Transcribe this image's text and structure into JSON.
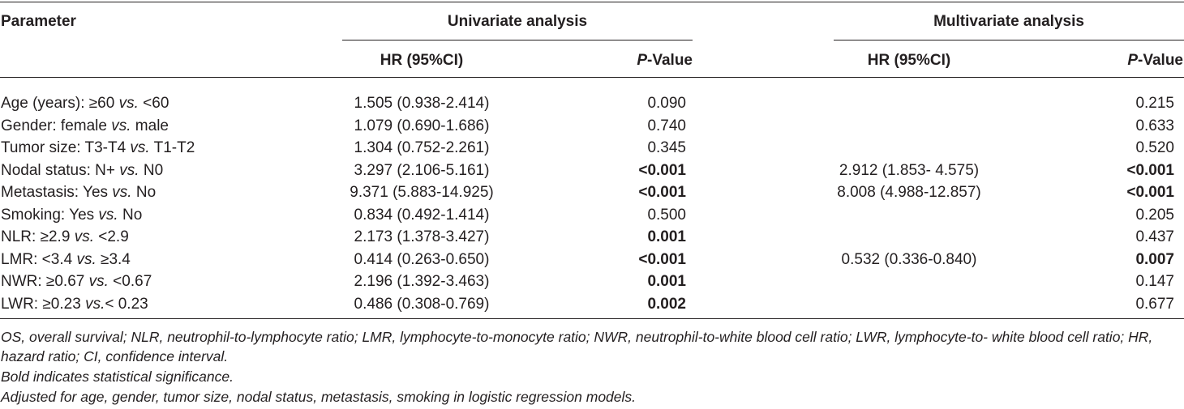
{
  "table": {
    "headers": {
      "parameter": "Parameter",
      "univariate": "Univariate analysis",
      "multivariate": "Multivariate analysis",
      "hr": "HR (95%CI)",
      "p_italic": "P",
      "p_suffix": "-Value"
    },
    "rows": [
      {
        "p1": "Age (years): ≥60 ",
        "vs": "vs.",
        "p2": " <60",
        "uni_hr": "1.505 (0.938-2.414)",
        "uni_p": "0.090",
        "uni_sig": false,
        "multi_hr": "",
        "multi_p": "0.215",
        "multi_sig": false
      },
      {
        "p1": "Gender: female ",
        "vs": "vs.",
        "p2": " male",
        "uni_hr": "1.079 (0.690-1.686)",
        "uni_p": "0.740",
        "uni_sig": false,
        "multi_hr": "",
        "multi_p": "0.633",
        "multi_sig": false
      },
      {
        "p1": "Tumor size: T3-T4 ",
        "vs": "vs.",
        "p2": " T1-T2",
        "uni_hr": "1.304 (0.752-2.261)",
        "uni_p": "0.345",
        "uni_sig": false,
        "multi_hr": "",
        "multi_p": "0.520",
        "multi_sig": false
      },
      {
        "p1": "Nodal status: N+ ",
        "vs": "vs.",
        "p2": " N0",
        "uni_hr": "3.297 (2.106-5.161)",
        "uni_p": "<0.001",
        "uni_sig": true,
        "multi_hr": "2.912 (1.853- 4.575)",
        "multi_p": "<0.001",
        "multi_sig": true
      },
      {
        "p1": "Metastasis: Yes ",
        "vs": "vs.",
        "p2": " No",
        "uni_hr": "9.371 (5.883-14.925)",
        "uni_p": "<0.001",
        "uni_sig": true,
        "multi_hr": "8.008 (4.988-12.857)",
        "multi_p": "<0.001",
        "multi_sig": true
      },
      {
        "p1": "Smoking: Yes ",
        "vs": "vs.",
        "p2": " No",
        "uni_hr": "0.834 (0.492-1.414)",
        "uni_p": "0.500",
        "uni_sig": false,
        "multi_hr": "",
        "multi_p": "0.205",
        "multi_sig": false
      },
      {
        "p1": "NLR: ≥2.9 ",
        "vs": "vs.",
        "p2": " <2.9",
        "uni_hr": "2.173 (1.378-3.427)",
        "uni_p": "0.001",
        "uni_sig": true,
        "multi_hr": "",
        "multi_p": "0.437",
        "multi_sig": false
      },
      {
        "p1": "LMR: <3.4 ",
        "vs": "vs.",
        "p2": " ≥3.4",
        "uni_hr": "0.414 (0.263-0.650)",
        "uni_p": "<0.001",
        "uni_sig": true,
        "multi_hr": "0.532 (0.336-0.840)",
        "multi_p": "0.007",
        "multi_sig": true
      },
      {
        "p1": "NWR: ≥0.67 ",
        "vs": "vs.",
        "p2": " <0.67",
        "uni_hr": "2.196 (1.392-3.463)",
        "uni_p": "0.001",
        "uni_sig": true,
        "multi_hr": "",
        "multi_p": "0.147",
        "multi_sig": false
      },
      {
        "p1": "LWR: ≥0.23 ",
        "vs": "vs.",
        "p2": "< 0.23",
        "uni_hr": "0.486 (0.308-0.769)",
        "uni_p": "0.002",
        "uni_sig": true,
        "multi_hr": "",
        "multi_p": "0.677",
        "multi_sig": false
      }
    ]
  },
  "footnotes": {
    "abbreviations": "OS, overall survival; NLR, neutrophil-to-lymphocyte ratio; LMR, lymphocyte-to-monocyte ratio; NWR, neutrophil-to-white blood cell ratio; LWR, lymphocyte-to- white blood cell ratio; HR, hazard ratio; CI, confidence interval.",
    "bold_note": "Bold indicates statistical significance.",
    "adjusted_note": "Adjusted for age, gender, tumor size, nodal status, metastasis, smoking in logistic regression models."
  }
}
